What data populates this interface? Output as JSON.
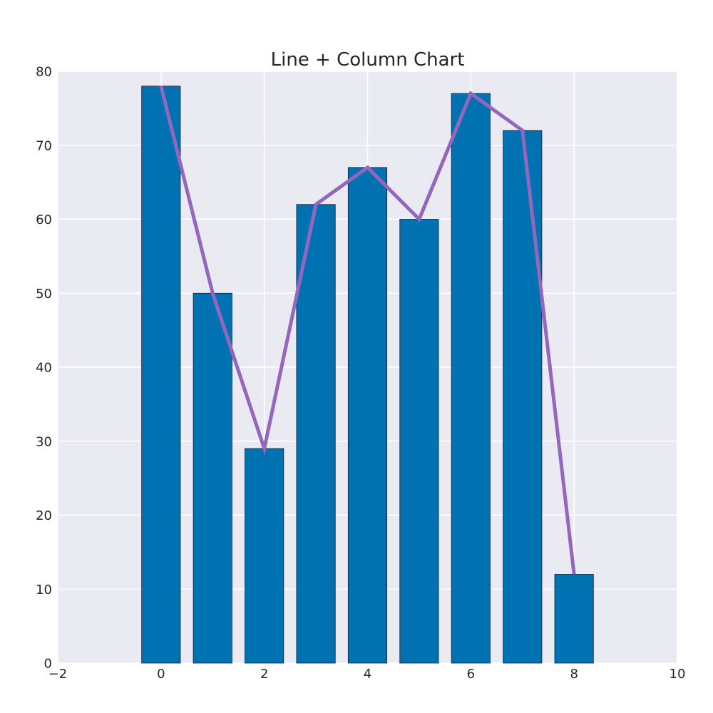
{
  "chart_data": {
    "type": "bar",
    "title": "Line + Column Chart",
    "xlabel": "",
    "ylabel": "",
    "xlim": [
      -2,
      10
    ],
    "ylim": [
      0,
      80
    ],
    "x_ticks": [
      -2,
      0,
      2,
      4,
      6,
      8,
      10
    ],
    "x_tick_labels": [
      "−2",
      "0",
      "2",
      "4",
      "6",
      "8",
      "10"
    ],
    "y_ticks": [
      0,
      10,
      20,
      30,
      40,
      50,
      60,
      70,
      80
    ],
    "y_tick_labels": [
      "0",
      "10",
      "20",
      "30",
      "40",
      "50",
      "60",
      "70",
      "80"
    ],
    "grid": true,
    "x": [
      0,
      1,
      2,
      3,
      4,
      5,
      6,
      7,
      8
    ],
    "series": [
      {
        "kind": "bar",
        "values": [
          78,
          50,
          29,
          62,
          67,
          60,
          77,
          72,
          12
        ],
        "color": "#0072b2",
        "bar_width": 0.75
      },
      {
        "kind": "line",
        "values": [
          78,
          50,
          29,
          62,
          67,
          60,
          77,
          72,
          12
        ],
        "color": "#9467bd"
      }
    ]
  },
  "colors": {
    "plot_background": "#eaeaf2",
    "grid": "#ffffff",
    "text": "#262626"
  }
}
